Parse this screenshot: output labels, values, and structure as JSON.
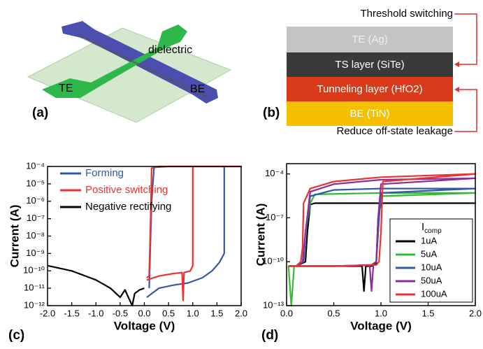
{
  "panels": {
    "a": {
      "label": "(a)",
      "dielectric": "dielectric",
      "te": "TE",
      "be": "BE"
    },
    "b": {
      "label": "(b)",
      "layers": [
        "TE (Ag)",
        "TS layer (SiTe)",
        "Tunneling layer (HfO2)",
        "BE (TiN)"
      ],
      "top_note": "Threshold switching",
      "bottom_note": "Reduce off-state leakage"
    }
  },
  "chart_data": [
    {
      "type": "line",
      "panel_label": "(c)",
      "x_label": "Voltage (V)",
      "y_label": "Current (A)",
      "log_y": true,
      "legend": "upper left",
      "xlim": [
        -2,
        2
      ],
      "xticks": [
        {
          "value": -2,
          "label": "-2.0"
        },
        {
          "value": -1.5,
          "label": "-1.5"
        },
        {
          "value": -1,
          "label": "-1.0"
        },
        {
          "value": -0.5,
          "label": "-0.5"
        },
        {
          "value": 0,
          "label": "0.0"
        },
        {
          "value": 0.5,
          "label": "0.5"
        },
        {
          "value": 1,
          "label": "1.0"
        },
        {
          "value": 1.5,
          "label": "1.5"
        },
        {
          "value": 2,
          "label": "2.0"
        }
      ],
      "ylim": [
        1e-12,
        0.0001
      ],
      "yticks": [
        {
          "value": 1e-12,
          "label": "10⁻¹²"
        },
        {
          "value": 1e-11,
          "label": "10⁻¹¹"
        },
        {
          "value": 1e-10,
          "label": "10⁻¹⁰"
        },
        {
          "value": 1e-09,
          "label": "10⁻⁹"
        },
        {
          "value": 1e-08,
          "label": "10⁻⁸"
        },
        {
          "value": 1e-07,
          "label": "10⁻⁷"
        },
        {
          "value": 1e-06,
          "label": "10⁻⁶"
        },
        {
          "value": 1e-05,
          "label": "10⁻⁵"
        },
        {
          "value": 0.0001,
          "label": "10⁻⁴"
        }
      ],
      "series": [
        {
          "name": "Forming",
          "color": "#3557a8",
          "x": [
            0.05,
            0.3,
            0.6,
            0.9,
            1.2,
            1.4,
            1.55,
            1.65,
            1.65,
            2.0,
            1.0,
            0.5,
            0.2,
            0.15,
            0.12,
            0.1
          ],
          "values": [
            3e-12,
            1e-11,
            1.5e-11,
            2e-11,
            4e-11,
            1e-10,
            3e-10,
            1e-09,
            0.0001,
            0.0001,
            0.0001,
            0.0001,
            9e-05,
            1e-06,
            1e-09,
            1e-11
          ]
        },
        {
          "name": "Positive switching",
          "color": "#f03030",
          "x": [
            0.05,
            0.3,
            0.6,
            0.78,
            0.8,
            0.82,
            0.95,
            1.0,
            1.0,
            2.0,
            0.3,
            0.15,
            0.13,
            0.1,
            0.05
          ],
          "values": [
            3e-11,
            5e-11,
            7e-11,
            8e-11,
            2e-12,
            8e-11,
            1e-10,
            2e-10,
            0.0001,
            0.0001,
            0.0001,
            8e-05,
            1e-07,
            5e-11,
            4e-11
          ]
        },
        {
          "name": "Negative rectifying",
          "color": "#000000",
          "x": [
            -2.0,
            -1.5,
            -1.0,
            -0.7,
            -0.5,
            -0.4,
            -0.3,
            -0.25,
            -0.2,
            -0.1,
            0
          ],
          "values": [
            2e-10,
            1e-10,
            3e-11,
            1e-11,
            3e-12,
            8e-12,
            2e-12,
            1e-12,
            5e-12,
            8e-12,
            1e-11
          ]
        }
      ]
    },
    {
      "type": "line",
      "panel_label": "(d)",
      "x_label": "Voltage (V)",
      "y_label": "Current (A)",
      "log_y": true,
      "legend": "lower right",
      "legend_title": "I",
      "legend_title_sub": "comp",
      "xlim": [
        0,
        2
      ],
      "xticks": [
        {
          "value": 0,
          "label": "0.0"
        },
        {
          "value": 0.5,
          "label": "0.5"
        },
        {
          "value": 1,
          "label": "1.0"
        },
        {
          "value": 1.5,
          "label": "1.5"
        },
        {
          "value": 2,
          "label": "2.0"
        }
      ],
      "ylim": [
        1e-13,
        0.0005
      ],
      "yticks": [
        {
          "value": 1e-13,
          "label": "10⁻¹³"
        },
        {
          "value": 1e-10,
          "label": "10⁻¹⁰"
        },
        {
          "value": 1e-07,
          "label": "10⁻⁷"
        },
        {
          "value": 0.0001,
          "label": "10⁻⁴"
        }
      ],
      "series": [
        {
          "name": "1uA",
          "color": "#000000",
          "x": [
            0.02,
            0.5,
            0.8,
            0.82,
            0.84,
            0.9,
            0.95,
            0.97,
            1.0,
            2.0,
            1.0,
            0.3,
            0.25,
            0.22,
            0.2,
            0.1,
            0.02
          ],
          "values": [
            5e-11,
            5e-11,
            5e-11,
            1e-12,
            5e-11,
            5e-11,
            8e-11,
            1e-07,
            1e-06,
            1e-06,
            1e-06,
            1e-06,
            8e-07,
            1e-08,
            1e-10,
            5e-11,
            5e-11
          ]
        },
        {
          "name": "5uA",
          "color": "#33bb33",
          "x": [
            0.02,
            0.05,
            0.08,
            0.5,
            0.9,
            0.95,
            0.98,
            1.0,
            2.0,
            1.0,
            0.3,
            0.25,
            0.2,
            0.18,
            0.1,
            0.02
          ],
          "values": [
            5e-11,
            1e-13,
            5e-11,
            5e-11,
            6e-11,
            1e-10,
            1e-07,
            3e-06,
            5e-06,
            5e-06,
            4e-06,
            1e-06,
            1e-08,
            1e-10,
            5e-11,
            5e-11
          ]
        },
        {
          "name": "10uA",
          "color": "#3557a8",
          "x": [
            0.02,
            0.5,
            0.9,
            0.95,
            0.98,
            1.0,
            2.0,
            1.0,
            0.5,
            0.25,
            0.2,
            0.18,
            0.1,
            0.02
          ],
          "values": [
            5e-11,
            5e-11,
            6e-11,
            1e-10,
            1e-07,
            5e-06,
            1e-05,
            1e-05,
            8e-06,
            3e-06,
            1e-08,
            1e-10,
            5e-11,
            5e-11
          ]
        },
        {
          "name": "50uA",
          "color": "#8a2e9a",
          "x": [
            0.02,
            0.5,
            0.88,
            0.9,
            0.92,
            0.95,
            0.97,
            1.0,
            2.0,
            1.0,
            0.5,
            0.25,
            0.2,
            0.17,
            0.1,
            0.02
          ],
          "values": [
            5e-11,
            5e-11,
            6e-11,
            1e-12,
            6e-11,
            1e-10,
            1e-07,
            2e-05,
            5e-05,
            4e-05,
            2e-05,
            6e-06,
            1e-08,
            1e-10,
            5e-11,
            5e-11
          ]
        },
        {
          "name": "100uA",
          "color": "#f03030",
          "x": [
            0.02,
            0.5,
            0.95,
            0.98,
            1.0,
            1.02,
            2.0,
            1.0,
            0.5,
            0.25,
            0.18,
            0.17,
            0.15,
            0.1,
            0.02
          ],
          "values": [
            5e-11,
            5e-11,
            6e-11,
            1e-10,
            1e-08,
            3e-05,
            0.0001,
            6e-05,
            3e-05,
            1e-05,
            1e-06,
            1e-09,
            1e-10,
            5e-11,
            5e-11
          ]
        }
      ]
    }
  ]
}
